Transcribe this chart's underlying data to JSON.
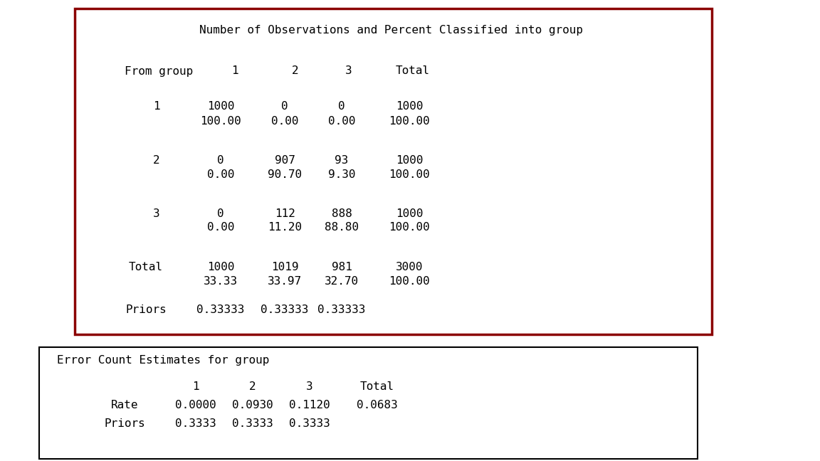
{
  "title1": "Number of Observations and Percent Classified into group",
  "header_row": [
    "From group",
    "1",
    "2",
    "3",
    "Total"
  ],
  "rows": [
    {
      "label": "1",
      "counts": [
        "1000",
        "0",
        "0",
        "1000"
      ],
      "percents": [
        "100.00",
        "0.00",
        "0.00",
        "100.00"
      ]
    },
    {
      "label": "2",
      "counts": [
        "0",
        "907",
        "93",
        "1000"
      ],
      "percents": [
        "0.00",
        "90.70",
        "9.30",
        "100.00"
      ]
    },
    {
      "label": "3",
      "counts": [
        "0",
        "112",
        "888",
        "1000"
      ],
      "percents": [
        "0.00",
        "11.20",
        "88.80",
        "100.00"
      ]
    },
    {
      "label": "Total",
      "counts": [
        "1000",
        "1019",
        "981",
        "3000"
      ],
      "percents": [
        "33.33",
        "33.97",
        "32.70",
        "100.00"
      ]
    }
  ],
  "priors_label": "Priors",
  "priors_values": [
    "0.33333",
    "0.33333",
    "0.33333"
  ],
  "title2": "Error Count Estimates for group",
  "error_header": [
    "",
    "1",
    "2",
    "3",
    "Total"
  ],
  "error_rate_label": "Rate",
  "error_rate_values": [
    "0.0000",
    "0.0930",
    "0.1120",
    "0.0683"
  ],
  "error_priors_label": "Priors",
  "error_priors_values": [
    "0.3333",
    "0.3333",
    "0.3333"
  ],
  "box1_color": "#8B0000",
  "box2_color": "#000000",
  "bg_color": "#ffffff",
  "font_color": "#000000",
  "font_size": 11.5
}
